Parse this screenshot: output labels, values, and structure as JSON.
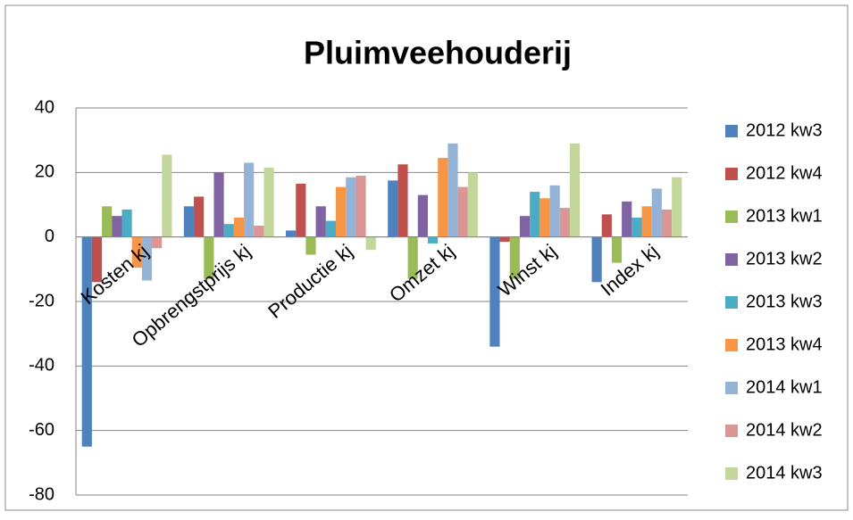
{
  "chart_data": {
    "type": "bar",
    "title": "Pluimveehouderij",
    "categories": [
      "Kosten kj",
      "Opbrengstprijs kj",
      "Productie kj",
      "Omzet kj",
      "Winst kj",
      "Index kj"
    ],
    "series": [
      {
        "name": "2012 kw3",
        "color": "#4f81bd",
        "values": [
          -65,
          9.5,
          2,
          17.5,
          -34,
          -14
        ]
      },
      {
        "name": "2012 kw4",
        "color": "#c0504d",
        "values": [
          -14,
          12.5,
          16.5,
          22.5,
          -1.5,
          7
        ]
      },
      {
        "name": "2013 kw1",
        "color": "#9bbb59",
        "values": [
          9.5,
          -13,
          -5.5,
          -13,
          -13,
          -8
        ]
      },
      {
        "name": "2013 kw2",
        "color": "#8064a2",
        "values": [
          6.5,
          20,
          9.5,
          13,
          6.5,
          11
        ]
      },
      {
        "name": "2013 kw3",
        "color": "#4bacc6",
        "values": [
          8.5,
          4,
          5,
          -2,
          14,
          6
        ]
      },
      {
        "name": "2013 kw4",
        "color": "#f79646",
        "values": [
          -9.5,
          6,
          15.5,
          24.5,
          12,
          9.5
        ]
      },
      {
        "name": "2014 kw1",
        "color": "#95b3d7",
        "values": [
          -13.5,
          23,
          18.5,
          29,
          16,
          15
        ]
      },
      {
        "name": "2014 kw2",
        "color": "#d99694",
        "values": [
          -3.5,
          3.5,
          19,
          15.5,
          9,
          8.5
        ]
      },
      {
        "name": "2014 kw3",
        "color": "#c3d69b",
        "values": [
          25.5,
          21.5,
          -4,
          20,
          29,
          18.5
        ]
      }
    ],
    "ylim": [
      -80,
      40
    ],
    "yticks": [
      -80,
      -60,
      -40,
      -20,
      0,
      20,
      40
    ],
    "grid": true,
    "legend": "right"
  }
}
